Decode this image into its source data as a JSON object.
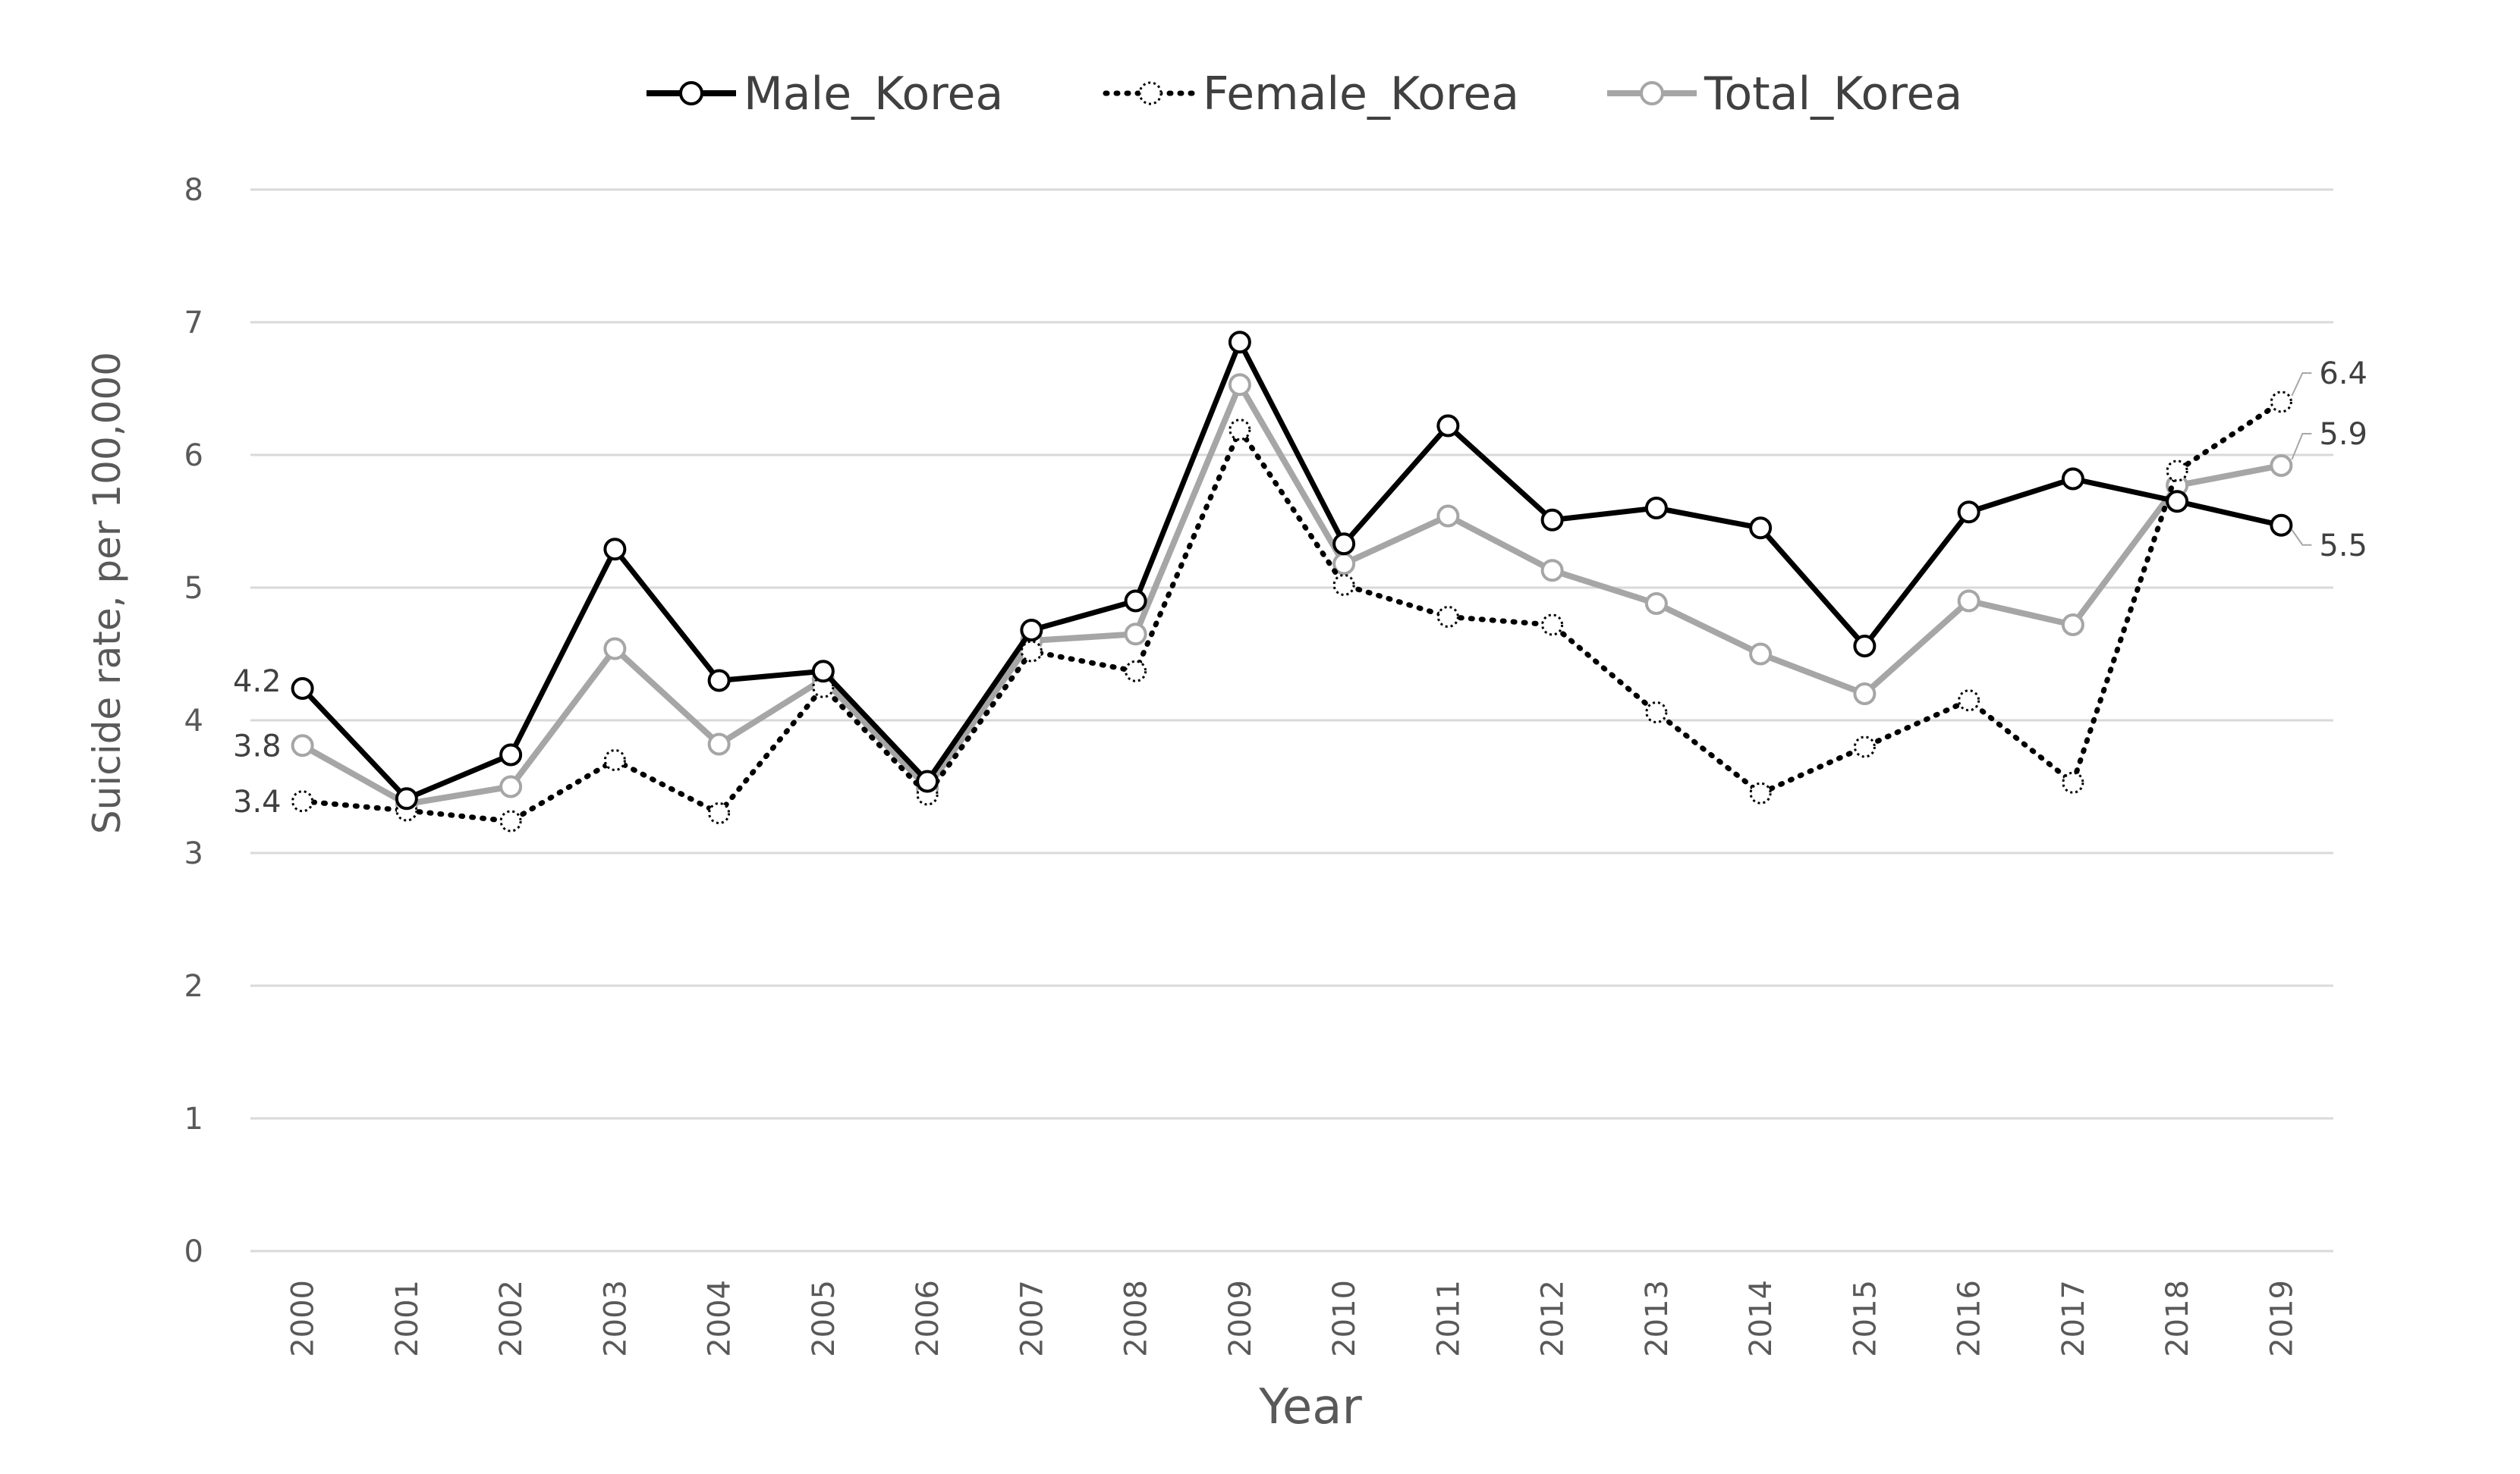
{
  "chart_data": {
    "type": "line",
    "xlabel": "Year",
    "ylabel": "Suicide rate, per 100,000",
    "ylim": [
      0,
      8
    ],
    "yticks": [
      "0",
      "1",
      "2",
      "3",
      "4",
      "5",
      "6",
      "7",
      "8"
    ],
    "categories": [
      "2000",
      "2001",
      "2002",
      "2003",
      "2004",
      "2005",
      "2006",
      "2007",
      "2008",
      "2009",
      "2010",
      "2011",
      "2012",
      "2013",
      "2014",
      "2015",
      "2016",
      "2017",
      "2018",
      "2019"
    ],
    "grid": true,
    "legend_position": "top",
    "series": [
      {
        "name": "Male_Korea",
        "style": "solid",
        "color": "#000000",
        "values": [
          4.24,
          3.41,
          3.74,
          5.29,
          4.3,
          4.37,
          3.54,
          4.68,
          4.9,
          6.85,
          5.33,
          6.22,
          5.51,
          5.6,
          5.45,
          4.56,
          5.57,
          5.82,
          5.65,
          5.47
        ]
      },
      {
        "name": "Female_Korea",
        "style": "dotted",
        "color": "#000000",
        "values": [
          3.39,
          3.32,
          3.24,
          3.7,
          3.3,
          4.25,
          3.44,
          4.52,
          4.37,
          6.19,
          5.02,
          4.78,
          4.72,
          4.06,
          3.45,
          3.8,
          4.15,
          3.53,
          5.88,
          6.4
        ]
      },
      {
        "name": "Total_Korea",
        "style": "solid",
        "color": "#A6A6A6",
        "values": [
          3.81,
          3.37,
          3.5,
          4.54,
          3.82,
          4.31,
          3.49,
          4.6,
          4.65,
          6.53,
          5.18,
          5.54,
          5.13,
          4.88,
          4.5,
          4.2,
          4.9,
          4.72,
          5.77,
          5.92
        ]
      }
    ],
    "annotations": [
      {
        "text": "4.2",
        "series": "Male_Korea",
        "index": 0
      },
      {
        "text": "3.8",
        "series": "Total_Korea",
        "index": 0
      },
      {
        "text": "3.4",
        "series": "Female_Korea",
        "index": 0
      },
      {
        "text": "6.4",
        "series": "Female_Korea",
        "index": 19
      },
      {
        "text": "5.9",
        "series": "Total_Korea",
        "index": 19
      },
      {
        "text": "5.5",
        "series": "Male_Korea",
        "index": 19
      }
    ]
  }
}
